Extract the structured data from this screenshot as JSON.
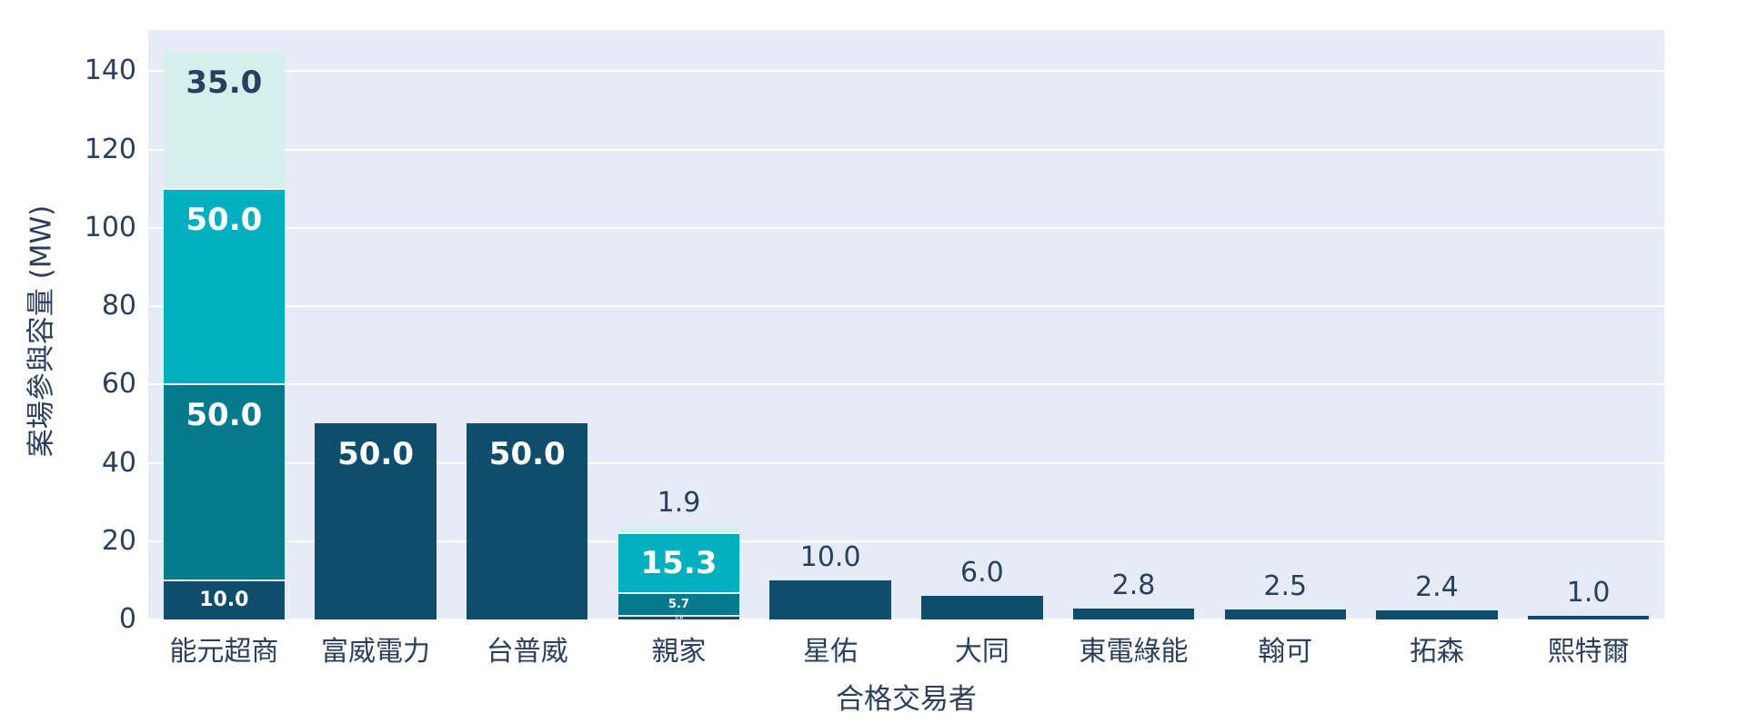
{
  "chart_data": {
    "type": "bar",
    "stacked": true,
    "title": "",
    "xlabel": "合格交易者",
    "ylabel": "案場參與容量 (MW)",
    "ylim": [
      0,
      150.5
    ],
    "yticks": [
      0,
      20,
      40,
      60,
      80,
      100,
      120,
      140
    ],
    "grid": true,
    "legend": "none",
    "categories": [
      "能元超商",
      "富威電力",
      "台普威",
      "親家",
      "星佑",
      "大同",
      "東電綠能",
      "翰可",
      "拓森",
      "熙特爾"
    ],
    "bars": [
      {
        "category": "能元超商",
        "total": 145.0,
        "segments": [
          {
            "value": 10.0,
            "label": "10.0",
            "color": "navy",
            "label_outside": false
          },
          {
            "value": 50.0,
            "label": "50.0",
            "color": "teal_dark",
            "label_outside": false
          },
          {
            "value": 50.0,
            "label": "50.0",
            "color": "teal_bright",
            "label_outside": false
          },
          {
            "value": 35.0,
            "label": "35.0",
            "color": "cyan_light",
            "label_outside": false
          }
        ]
      },
      {
        "category": "富威電力",
        "total": 50.0,
        "segments": [
          {
            "value": 50.0,
            "label": "50.0",
            "color": "navy",
            "label_outside": false
          }
        ]
      },
      {
        "category": "台普威",
        "total": 50.0,
        "segments": [
          {
            "value": 50.0,
            "label": "50.0",
            "color": "navy",
            "label_outside": false
          }
        ]
      },
      {
        "category": "親家",
        "total": 23.9,
        "segments": [
          {
            "value": 1.0,
            "label": "1.0",
            "color": "navy",
            "label_outside": false
          },
          {
            "value": 5.7,
            "label": "5.7",
            "color": "teal_dark",
            "label_outside": false
          },
          {
            "value": 15.3,
            "label": "15.3",
            "color": "teal_bright",
            "label_outside": false
          },
          {
            "value": 1.9,
            "label": "1.9",
            "color": "cyan_light",
            "label_outside": true
          }
        ]
      },
      {
        "category": "星佑",
        "total": 10.0,
        "segments": [
          {
            "value": 10.0,
            "label": "10.0",
            "color": "navy",
            "label_outside": true
          }
        ]
      },
      {
        "category": "大同",
        "total": 6.0,
        "segments": [
          {
            "value": 6.0,
            "label": "6.0",
            "color": "navy",
            "label_outside": true
          }
        ]
      },
      {
        "category": "東電綠能",
        "total": 2.8,
        "segments": [
          {
            "value": 2.8,
            "label": "2.8",
            "color": "navy",
            "label_outside": true
          }
        ]
      },
      {
        "category": "翰可",
        "total": 2.5,
        "segments": [
          {
            "value": 2.5,
            "label": "2.5",
            "color": "navy",
            "label_outside": true
          }
        ]
      },
      {
        "category": "拓森",
        "total": 2.4,
        "segments": [
          {
            "value": 2.4,
            "label": "2.4",
            "color": "navy",
            "label_outside": true
          }
        ]
      },
      {
        "category": "熙特爾",
        "total": 1.0,
        "segments": [
          {
            "value": 1.0,
            "label": "1.0",
            "color": "navy",
            "label_outside": true
          }
        ]
      }
    ],
    "colors": {
      "navy": "#0e4d6c",
      "teal_dark": "#057a8d",
      "teal_bright": "#00afc0",
      "cyan_light": "#d5efed",
      "plot_bg": "#e5ecf6",
      "grid": "#ffffff",
      "text": "#2a3f5f",
      "inside_label_light": "#ffffff",
      "inside_label_dark": "#2a3f5f"
    }
  }
}
